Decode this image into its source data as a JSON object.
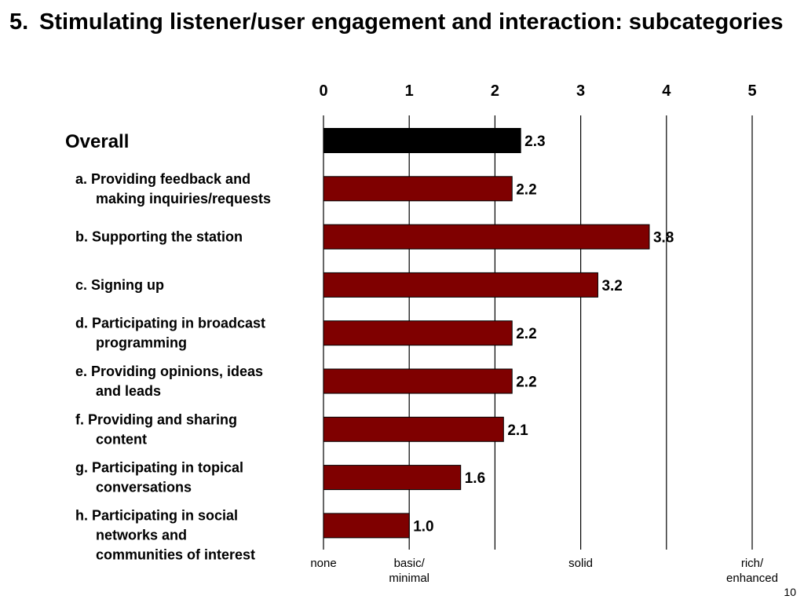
{
  "slide": {
    "title_number": "5.",
    "title_text": "Stimulating listener/user engagement and interaction: subcategories",
    "page_number": "10"
  },
  "chart_data": {
    "type": "bar",
    "orientation": "horizontal",
    "xlim": [
      0,
      5
    ],
    "x_ticks": [
      "0",
      "1",
      "2",
      "3",
      "4",
      "5"
    ],
    "scale_labels": [
      {
        "x": 0,
        "label": "none"
      },
      {
        "x": 1,
        "label": "basic/\nminimal"
      },
      {
        "x": 3,
        "label": "solid"
      },
      {
        "x": 5,
        "label": "rich/\nenhanced"
      }
    ],
    "grid": true,
    "categories": [
      "Overall",
      "a. Providing feedback and\nmaking inquiries/requests",
      "b. Supporting the station",
      "c. Signing up",
      "d. Participating in broadcast\nprogramming",
      "e. Providing opinions, ideas\nand leads",
      "f.  Providing and sharing\ncontent",
      "g. Participating in topical\nconversations",
      "h. Participating in social\nnetworks and\ncommunities of interest"
    ],
    "values": [
      2.3,
      2.2,
      3.8,
      3.2,
      2.2,
      2.2,
      2.1,
      1.6,
      1.0
    ],
    "value_labels": [
      "2.3",
      "2.2",
      "3.8",
      "3.2",
      "2.2",
      "2.2",
      "2.1",
      "1.6",
      "1.0"
    ],
    "colors": {
      "overall": "#000000",
      "subcategory": "#7f0000",
      "grid": "#000000"
    }
  }
}
